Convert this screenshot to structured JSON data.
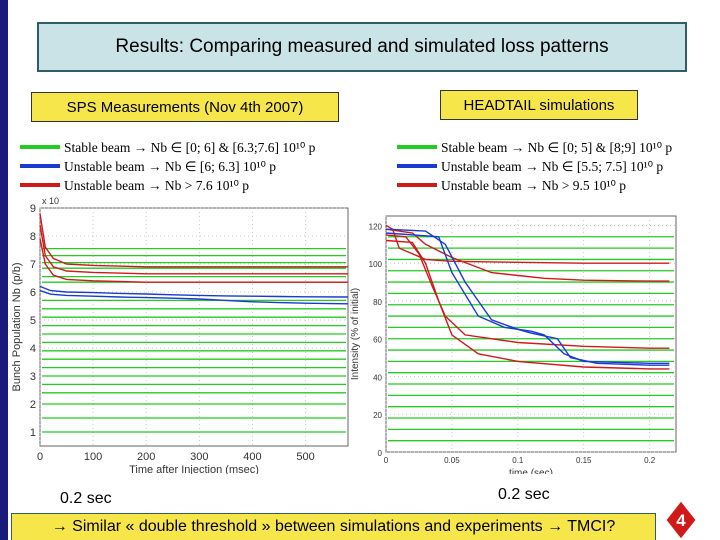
{
  "title": "Results: Comparing measured and simulated loss patterns",
  "left_panel": {
    "heading": "SPS Measurements (Nov 4th 2007)",
    "legend": [
      {
        "text": "Stable beam  → Nb ∈ [0; 6] & [6.3;7.6] 10¹⁰ p",
        "color": "#22cc22"
      },
      {
        "text": "Unstable beam  → Nb ∈ [6; 6.3] 10¹⁰ p",
        "color": "#1a3ad0"
      },
      {
        "text": "Unstable beam  → Nb > 7.6 10¹⁰  p",
        "color": "#d01a1a"
      }
    ]
  },
  "right_panel": {
    "heading": "HEADTAIL simulations",
    "legend": [
      {
        "text": "Stable beam → Nb ∈ [0; 5] & [8;9] 10¹⁰ p",
        "color": "#22cc22"
      },
      {
        "text": "Unstable beam  → Nb ∈ [5.5; 7.5] 10¹⁰ p",
        "color": "#1a3ad0"
      },
      {
        "text": "Unstable beam  → Nb > 9.5 10¹⁰  p",
        "color": "#d01a1a"
      }
    ]
  },
  "chart_data": [
    {
      "type": "line",
      "xlabel": "Time after Injection (msec)",
      "ylabel": "Bunch Population Nb (p/b)",
      "exponent_label": "x 10",
      "xlim": [
        0,
        580
      ],
      "ylim": [
        0.5,
        9
      ],
      "x_ticks": [
        0,
        100,
        200,
        300,
        400,
        500
      ],
      "y_ticks": [
        1,
        2,
        3,
        4,
        5,
        6,
        7,
        8,
        9
      ],
      "grid": true,
      "series_green_levels": [
        1.0,
        1.5,
        2.0,
        2.4,
        2.7,
        3.0,
        3.3,
        3.6,
        3.9,
        4.2,
        4.5,
        4.8,
        5.1,
        5.4,
        5.7,
        6.35,
        6.55,
        6.85,
        7.05,
        7.3,
        7.55
      ],
      "series": [
        {
          "color": "red",
          "x": [
            0,
            10,
            25,
            50,
            100,
            200,
            300,
            400,
            500,
            580
          ],
          "y": [
            8.8,
            7.6,
            7.2,
            7.0,
            6.95,
            6.9,
            6.9,
            6.9,
            6.9,
            6.9
          ]
        },
        {
          "color": "red",
          "x": [
            0,
            10,
            25,
            50,
            100,
            200,
            300,
            400,
            500,
            580
          ],
          "y": [
            8.4,
            7.3,
            6.9,
            6.75,
            6.7,
            6.65,
            6.65,
            6.65,
            6.65,
            6.65
          ]
        },
        {
          "color": "red",
          "x": [
            0,
            10,
            25,
            50,
            100,
            200,
            300,
            400,
            500,
            580
          ],
          "y": [
            7.9,
            7.0,
            6.6,
            6.45,
            6.4,
            6.35,
            6.35,
            6.35,
            6.35,
            6.35
          ]
        },
        {
          "color": "blue",
          "x": [
            0,
            20,
            50,
            100,
            150,
            200,
            250,
            300,
            350,
            400,
            450,
            500,
            580
          ],
          "y": [
            6.2,
            6.05,
            6.0,
            5.98,
            5.95,
            5.93,
            5.9,
            5.88,
            5.86,
            5.85,
            5.84,
            5.83,
            5.82
          ]
        },
        {
          "color": "blue",
          "x": [
            0,
            20,
            50,
            100,
            150,
            200,
            250,
            300,
            350,
            400,
            450,
            500,
            580
          ],
          "y": [
            6.05,
            5.92,
            5.88,
            5.85,
            5.82,
            5.8,
            5.78,
            5.75,
            5.7,
            5.65,
            5.62,
            5.6,
            5.58
          ]
        }
      ]
    },
    {
      "type": "line",
      "xlabel": "time (sec)",
      "ylabel": "Intensity (% of initial)",
      "xlim": [
        0,
        0.22
      ],
      "ylim": [
        0,
        125
      ],
      "x_ticks": [
        0,
        0.05,
        0.1,
        0.15,
        0.2
      ],
      "y_ticks": [
        0,
        20,
        40,
        60,
        80,
        100,
        120
      ],
      "grid": true,
      "series_green_levels": [
        6,
        12,
        18,
        24,
        30,
        36,
        42,
        48,
        54,
        60,
        66,
        72,
        78,
        84,
        90,
        96,
        102,
        108,
        114
      ],
      "series": [
        {
          "color": "red",
          "x": [
            0,
            0.005,
            0.01,
            0.03,
            0.05,
            0.1,
            0.15,
            0.2,
            0.215
          ],
          "y": [
            120,
            118,
            108,
            102,
            101,
            100.5,
            100,
            100,
            100
          ]
        },
        {
          "color": "red",
          "x": [
            0,
            0.01,
            0.02,
            0.03,
            0.05,
            0.08,
            0.12,
            0.15,
            0.2,
            0.215
          ],
          "y": [
            118,
            117,
            116,
            110,
            103,
            95,
            92,
            91,
            90.5,
            90.5
          ]
        },
        {
          "color": "red",
          "x": [
            0,
            0.015,
            0.025,
            0.035,
            0.045,
            0.06,
            0.1,
            0.15,
            0.2,
            0.215
          ],
          "y": [
            115,
            114,
            105,
            88,
            72,
            62,
            58,
            56,
            55,
            55
          ]
        },
        {
          "color": "red",
          "x": [
            0,
            0.02,
            0.03,
            0.04,
            0.05,
            0.07,
            0.1,
            0.15,
            0.2,
            0.215
          ],
          "y": [
            112,
            111,
            100,
            80,
            62,
            52,
            48,
            45,
            44,
            44
          ]
        },
        {
          "color": "blue",
          "x": [
            0,
            0.03,
            0.045,
            0.06,
            0.08,
            0.1,
            0.11,
            0.13,
            0.14,
            0.16,
            0.2,
            0.215
          ],
          "y": [
            118,
            117,
            110,
            90,
            70,
            65,
            63,
            60,
            50,
            47,
            46,
            46
          ]
        },
        {
          "color": "blue",
          "x": [
            0,
            0.04,
            0.05,
            0.07,
            0.09,
            0.11,
            0.12,
            0.135,
            0.15,
            0.2,
            0.215
          ],
          "y": [
            116,
            114,
            95,
            72,
            66,
            64,
            62,
            52,
            48,
            47,
            47
          ]
        }
      ]
    }
  ],
  "labels": {
    "left_02": "0.2 sec",
    "right_02": "0.2 sec"
  },
  "conclusion": "→ Similar « double threshold » between simulations and experiments → TMCI?",
  "page_number": "4",
  "colors": {
    "title_bg": "#c9e3e6",
    "box_yellow": "#f7e64a",
    "stable": "#22cc22",
    "unstable_mid": "#1a3ad0",
    "unstable_high": "#d01a1a"
  }
}
